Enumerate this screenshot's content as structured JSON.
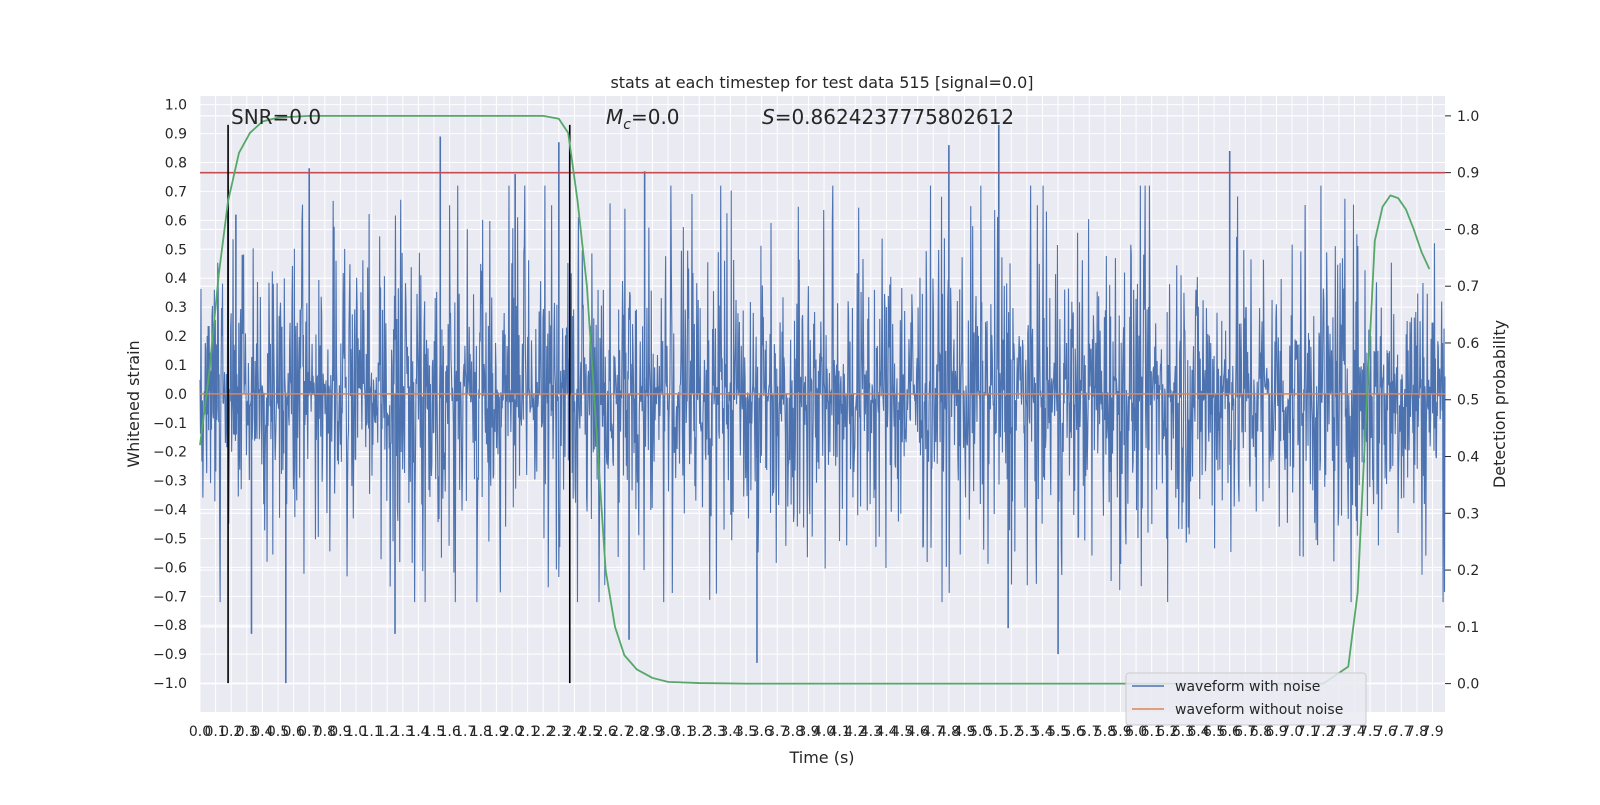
{
  "chart_data": {
    "type": "line",
    "title": "stats at each timestep for test data 515 [signal=0.0]",
    "xlabel": "Time (s)",
    "ylabel": "Whitened strain",
    "y2label": "Detection probability",
    "xlim": [
      0.0,
      7.98
    ],
    "ylim": [
      -1.1,
      1.03
    ],
    "y2lim": [
      -0.05,
      1.035
    ],
    "y2ticks": [
      "0.0",
      "0.1",
      "0.2",
      "0.3",
      "0.4",
      "0.5",
      "0.6",
      "0.7",
      "0.8",
      "0.9",
      "1.0"
    ],
    "background": "#eaeaf2",
    "grid": true,
    "legend_position": "lower-right",
    "annotations": {
      "snr": "SNR=0.0",
      "mc_symbol": "M",
      "mc_subscript": "c",
      "mc_value": "=0.0",
      "s_symbol": "S",
      "s_value": "=0.8624237775802612"
    },
    "vertical_markers_x": [
      0.18,
      2.37
    ],
    "threshold": {
      "y2": 0.9,
      "color": "#c44e52"
    },
    "series": [
      {
        "name": "waveform with noise",
        "color": "#4c72b0",
        "axis": "left",
        "description_amplitude_range": [
          -1.0,
          0.93
        ],
        "notable_peaks": [
          {
            "x": 0.18,
            "y": 0.63
          },
          {
            "x": 0.23,
            "y": 0.62
          },
          {
            "x": 0.7,
            "y": 0.78
          },
          {
            "x": 1.54,
            "y": 0.89
          },
          {
            "x": 2.02,
            "y": 0.76
          },
          {
            "x": 2.3,
            "y": 0.87
          },
          {
            "x": 2.37,
            "y": 0.86
          },
          {
            "x": 2.85,
            "y": 0.77
          },
          {
            "x": 4.8,
            "y": 0.86
          },
          {
            "x": 5.12,
            "y": 0.93
          },
          {
            "x": 6.6,
            "y": 0.84
          }
        ],
        "notable_troughs": [
          {
            "x": 0.55,
            "y": -1.0
          },
          {
            "x": 0.33,
            "y": -0.83
          },
          {
            "x": 1.25,
            "y": -0.83
          },
          {
            "x": 2.75,
            "y": -0.85
          },
          {
            "x": 3.57,
            "y": -0.93
          },
          {
            "x": 5.5,
            "y": -0.9
          },
          {
            "x": 5.18,
            "y": -0.81
          }
        ]
      },
      {
        "name": "waveform without noise",
        "color": "#dd8452",
        "axis": "left",
        "x": [
          0.0,
          7.98
        ],
        "y": [
          0.0,
          0.0
        ]
      },
      {
        "name": "detection probability",
        "color": "#55a868",
        "axis": "right",
        "x": [
          0.0,
          0.06,
          0.12,
          0.18,
          0.25,
          0.32,
          0.4,
          0.5,
          0.7,
          1.0,
          2.0,
          2.2,
          2.3,
          2.36,
          2.42,
          2.48,
          2.54,
          2.6,
          2.66,
          2.72,
          2.8,
          2.9,
          3.0,
          3.2,
          3.5,
          7.2,
          7.36,
          7.42,
          7.47,
          7.53,
          7.58,
          7.63,
          7.68,
          7.73,
          7.78,
          7.83,
          7.88
        ],
        "y": [
          0.42,
          0.55,
          0.72,
          0.85,
          0.935,
          0.97,
          0.99,
          0.997,
          1.0,
          1.0,
          1.0,
          1.0,
          0.995,
          0.97,
          0.85,
          0.7,
          0.45,
          0.2,
          0.1,
          0.05,
          0.025,
          0.01,
          0.003,
          0.001,
          0.0,
          0.0,
          0.03,
          0.16,
          0.45,
          0.78,
          0.84,
          0.86,
          0.855,
          0.835,
          0.8,
          0.76,
          0.73
        ]
      }
    ]
  }
}
